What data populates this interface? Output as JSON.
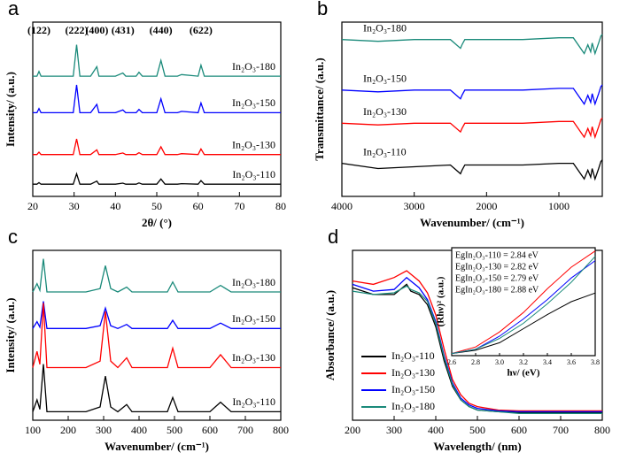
{
  "chart_data": [
    {
      "type": "line",
      "panel_label": "a",
      "xlabel": "2θ/ (°)",
      "ylabel": "Intensity/ (a.u.)",
      "xlim": [
        20,
        80
      ],
      "xticks": [
        20,
        30,
        40,
        50,
        60,
        70,
        80
      ],
      "ylim": [
        0,
        100
      ],
      "x": [
        20,
        21,
        21.5,
        22,
        25,
        29.8,
        30.6,
        31.4,
        34,
        35.5,
        36,
        37,
        40,
        41.8,
        42.5,
        45,
        45.7,
        46.5,
        50,
        51,
        52,
        55,
        56,
        60,
        60.7,
        61.5,
        65,
        70,
        75,
        80
      ],
      "annotations": [
        {
          "text": "(122)",
          "x": 21.5
        },
        {
          "text": "(222)",
          "x": 30.6
        },
        {
          "text": "(400)",
          "x": 35.5
        },
        {
          "text": "(431)",
          "x": 41.8
        },
        {
          "text": "(440)",
          "x": 51
        },
        {
          "text": "(622)",
          "x": 60.7
        }
      ],
      "series": [
        {
          "name": "In₂O₃-180",
          "color": "#1a8a7a",
          "values": [
            69,
            69,
            71.7,
            69,
            69,
            69,
            87,
            69,
            69,
            74.4,
            69,
            69,
            69,
            70.8,
            69,
            69,
            71.2,
            69,
            69,
            78,
            69,
            69,
            69.9,
            69,
            75.3,
            69,
            69,
            69,
            69,
            69
          ]
        },
        {
          "name": "In₂O₃-150",
          "color": "#0000ff",
          "values": [
            48,
            48,
            50.4,
            48,
            48,
            48,
            64,
            48,
            48,
            52.8,
            48,
            48,
            48,
            49.6,
            48,
            48,
            49.9,
            48,
            48,
            56,
            48,
            48,
            48.8,
            48,
            53.6,
            48,
            48,
            48,
            48,
            48
          ]
        },
        {
          "name": "In₂O₃-130",
          "color": "#ff0000",
          "values": [
            24,
            24,
            25.4,
            24,
            24,
            24,
            33,
            24,
            24,
            26.7,
            24,
            24,
            24,
            24.9,
            24,
            24,
            25.1,
            24,
            24,
            28.5,
            24,
            24,
            24.5,
            24,
            27.2,
            24,
            24,
            24,
            24,
            24
          ]
        },
        {
          "name": "In₂O₃-110",
          "color": "#000000",
          "values": [
            7,
            7,
            7.9,
            7,
            7,
            7,
            13,
            7,
            7,
            8.8,
            7,
            7,
            7,
            7.6,
            7,
            7,
            7.7,
            7,
            7,
            10,
            7,
            7,
            7.3,
            7,
            9.1,
            7,
            7,
            7,
            7,
            7
          ]
        }
      ]
    },
    {
      "type": "line",
      "panel_label": "b",
      "xlabel": "Wavenumber/ (cm⁻¹)",
      "ylabel": "Transmittance/ (a.u.)",
      "xlim": [
        4000,
        400
      ],
      "xticks": [
        4000,
        3000,
        2000,
        1000
      ],
      "ylim": [
        0,
        100
      ],
      "x": [
        4000,
        3500,
        3000,
        2500,
        2360,
        2340,
        2300,
        2000,
        1500,
        1000,
        800,
        650,
        600,
        560,
        540,
        500,
        450,
        420,
        400
      ],
      "series": [
        {
          "name": "In₂O₃-180",
          "color": "#1a8a7a",
          "values": [
            90,
            89,
            90,
            90,
            85,
            87,
            90,
            90,
            90,
            91,
            91,
            82,
            87,
            83,
            88,
            82,
            88,
            92,
            93
          ]
        },
        {
          "name": "In₂O₃-150",
          "color": "#0000ff",
          "values": [
            61,
            60,
            61,
            61,
            56,
            58,
            61,
            61,
            61,
            62,
            62,
            53,
            58,
            54,
            59,
            53,
            59,
            63,
            64
          ]
        },
        {
          "name": "In₂O₃-130",
          "color": "#ff0000",
          "values": [
            42,
            41,
            42,
            42,
            37,
            39,
            42,
            42,
            42,
            43,
            43,
            34,
            39,
            35,
            40,
            34,
            40,
            44,
            45
          ]
        },
        {
          "name": "In₂O₃-110",
          "color": "#000000",
          "values": [
            19,
            16,
            17,
            18,
            13,
            15,
            18,
            18,
            18,
            19,
            19,
            10,
            15,
            11,
            16,
            10,
            16,
            20,
            21
          ]
        }
      ]
    },
    {
      "type": "line",
      "panel_label": "c",
      "xlabel": "Wavenumber/ (cm⁻¹)",
      "ylabel": "Intensity/ (a.u.)",
      "xlim": [
        100,
        800
      ],
      "xticks": [
        100,
        200,
        300,
        400,
        500,
        600,
        700,
        800
      ],
      "ylim": [
        0,
        100
      ],
      "x": [
        100,
        112,
        120,
        130,
        140,
        160,
        200,
        250,
        290,
        305,
        320,
        340,
        365,
        380,
        450,
        480,
        495,
        510,
        600,
        630,
        660,
        700,
        800
      ],
      "series": [
        {
          "name": "In₂O₃-180",
          "color": "#1a8a7a",
          "values": [
            75.5,
            80.4,
            76.5,
            95,
            75.5,
            75.5,
            75.5,
            75.5,
            77.5,
            91,
            77.5,
            75.5,
            78.4,
            75.5,
            75.5,
            75.5,
            81.4,
            75.5,
            75.5,
            79.4,
            75.5,
            75.5,
            75.5
          ]
        },
        {
          "name": "In₂O₃-150",
          "color": "#0000ff",
          "values": [
            54,
            58,
            54.8,
            70,
            54,
            54,
            54,
            54,
            55.6,
            66,
            55.6,
            54,
            56.4,
            54,
            54,
            54,
            58.8,
            54,
            54,
            57.2,
            54,
            54,
            54
          ]
        },
        {
          "name": "In₂O₃-130",
          "color": "#ff0000",
          "values": [
            31,
            40.5,
            32.9,
            69,
            31,
            31,
            31,
            31,
            34.8,
            64,
            34.8,
            31,
            36.7,
            31,
            31,
            31,
            42.4,
            31,
            31,
            38.6,
            31,
            31,
            31
          ]
        },
        {
          "name": "In₂O₃-110",
          "color": "#000000",
          "values": [
            5,
            12,
            6.4,
            33,
            5,
            5,
            5,
            5,
            7.8,
            26,
            7.8,
            5,
            9.2,
            5,
            5,
            5,
            13.4,
            5,
            5,
            10.6,
            5,
            5,
            5
          ]
        }
      ]
    },
    {
      "type": "line",
      "panel_label": "d",
      "xlabel": "Wavelength/ (nm)",
      "ylabel": "Absorbance/ (a.u.)",
      "xlim": [
        200,
        800
      ],
      "xticks": [
        200,
        300,
        400,
        500,
        600,
        700,
        800
      ],
      "ylim": [
        0,
        100
      ],
      "legend": "lower left",
      "x": [
        200,
        250,
        300,
        330,
        340,
        360,
        380,
        400,
        420,
        440,
        460,
        480,
        500,
        550,
        600,
        700,
        800
      ],
      "series": [
        {
          "name": "In₂O₃-110",
          "color": "#000000",
          "values": [
            78,
            74,
            74,
            80,
            76,
            74,
            68,
            55,
            35,
            20,
            12,
            8,
            6,
            5,
            4.5,
            4.5,
            4.5
          ]
        },
        {
          "name": "In₂O₃-130",
          "color": "#ff0000",
          "values": [
            82,
            80,
            84,
            88,
            86,
            82,
            75,
            62,
            42,
            24,
            15,
            10,
            8,
            6,
            5.5,
            5.5,
            5.5
          ]
        },
        {
          "name": "In₂O₃-150",
          "color": "#0000ff",
          "values": [
            80,
            76,
            77,
            84,
            82,
            78,
            71,
            58,
            38,
            22,
            13,
            9,
            7,
            5.5,
            5,
            5,
            5
          ]
        },
        {
          "name": "In₂O₃-180",
          "color": "#1a8a7a",
          "values": [
            76,
            74,
            75,
            79,
            77,
            75,
            70,
            57,
            37,
            21,
            12,
            8,
            6,
            5,
            4,
            4,
            4
          ]
        }
      ],
      "inset": {
        "xlabel": "hν/ (eV)",
        "ylabel": "(Rhν)² (a.u.)",
        "xlim": [
          2.6,
          3.8
        ],
        "xticks": [
          2.6,
          2.8,
          {
            "value": 3,
            "label": "3.0"
          },
          3.2,
          3.4,
          3.6,
          3.8
        ],
        "ylim": [
          0,
          100
        ],
        "x": [
          2.6,
          2.8,
          3,
          3.2,
          3.4,
          3.6,
          3.8
        ],
        "labels": [
          {
            "text": "EgIn₂O₃-110 = 2.84 eV",
            "color": "#000000"
          },
          {
            "text": "EgIn₂O₃-130 = 2.82 eV",
            "color": "#ff0000"
          },
          {
            "text": "EgIn₂O₃-150 = 2.79 eV",
            "color": "#0000ff"
          },
          {
            "text": "EgIn₂O₃-180 = 2.88 eV",
            "color": "#1a8a7a"
          }
        ],
        "series": [
          {
            "color": "#000000",
            "values": [
              2,
              5,
              12,
              25,
              38,
              50,
              58
            ]
          },
          {
            "color": "#ff0000",
            "values": [
              2,
              8,
              22,
              40,
              62,
              82,
              97
            ]
          },
          {
            "color": "#0000ff",
            "values": [
              2,
              6,
              18,
              34,
              52,
              72,
              88
            ]
          },
          {
            "color": "#1a8a7a",
            "values": [
              2,
              6,
              16,
              30,
              48,
              68,
              92
            ]
          }
        ]
      }
    }
  ]
}
